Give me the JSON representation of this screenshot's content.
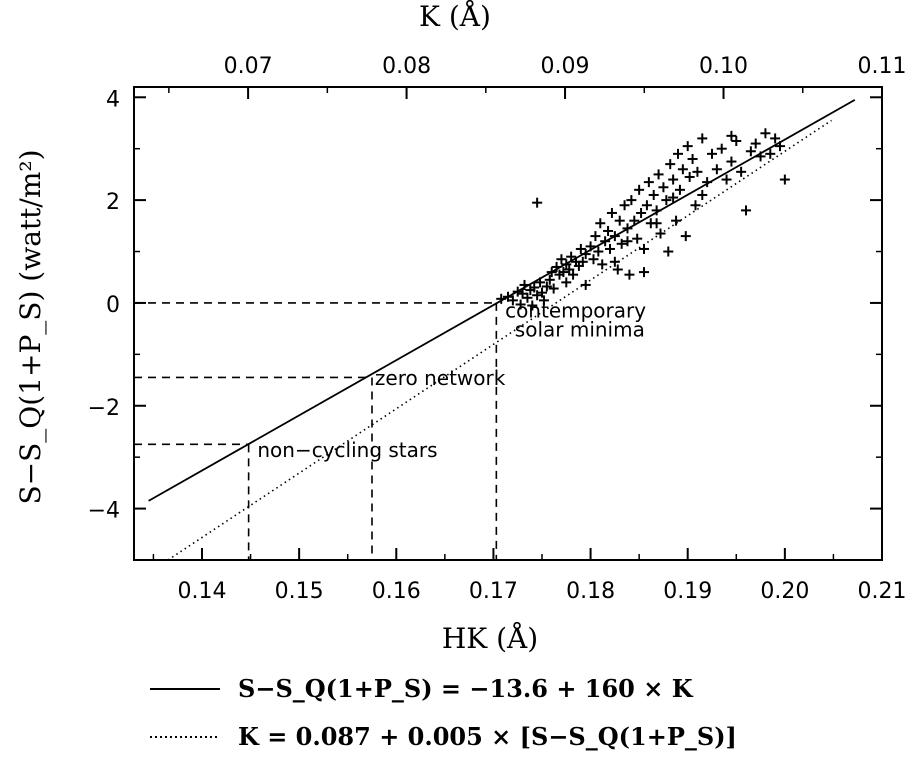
{
  "chart_data": {
    "type": "scatter",
    "title": "",
    "xlabel": "HK (Å)",
    "x2label": "K (Å)",
    "ylabel": "S−S_Q(1+P_S) (watt/m²)",
    "xlim": [
      0.133,
      0.21
    ],
    "x2lim": [
      0.0628,
      0.11
    ],
    "ylim": [
      -5,
      4.2
    ],
    "xticks": [
      "0.14",
      "0.15",
      "0.16",
      "0.17",
      "0.18",
      "0.19",
      "0.20",
      "0.21"
    ],
    "x2ticks": [
      "0.07",
      "0.08",
      "0.09",
      "0.10",
      "0.11"
    ],
    "yticks": [
      "4",
      "2",
      "0",
      "−2",
      "−4"
    ],
    "grid": false,
    "series": [
      {
        "marker": "plus",
        "points": [
          [
            0.1708,
            0.08
          ],
          [
            0.1715,
            0.12
          ],
          [
            0.172,
            0.05
          ],
          [
            0.1725,
            0.22
          ],
          [
            0.1728,
            -0.03
          ],
          [
            0.173,
            0.18
          ],
          [
            0.1732,
            0.35
          ],
          [
            0.1735,
            0.1
          ],
          [
            0.1738,
            0.25
          ],
          [
            0.174,
            -0.05
          ],
          [
            0.1742,
            0.3
          ],
          [
            0.1745,
            0.15
          ],
          [
            0.1748,
            0.4
          ],
          [
            0.175,
            0.2
          ],
          [
            0.1752,
            0.05
          ],
          [
            0.1755,
            0.32
          ],
          [
            0.1758,
            0.45
          ],
          [
            0.176,
            0.6
          ],
          [
            0.1762,
            0.28
          ],
          [
            0.1765,
            0.7
          ],
          [
            0.1768,
            0.55
          ],
          [
            0.177,
            0.85
          ],
          [
            0.1772,
            0.6
          ],
          [
            0.1775,
            0.75
          ],
          [
            0.1778,
            0.65
          ],
          [
            0.178,
            0.9
          ],
          [
            0.1782,
            0.55
          ],
          [
            0.1785,
            0.8
          ],
          [
            0.1788,
            0.72
          ],
          [
            0.179,
            1.05
          ],
          [
            0.1792,
            0.8
          ],
          [
            0.1795,
            0.95
          ],
          [
            0.18,
            1.1
          ],
          [
            0.1803,
            0.85
          ],
          [
            0.1805,
            1.3
          ],
          [
            0.1808,
            1.0
          ],
          [
            0.181,
            1.55
          ],
          [
            0.1812,
            0.75
          ],
          [
            0.1815,
            1.2
          ],
          [
            0.1818,
            1.4
          ],
          [
            0.182,
            1.05
          ],
          [
            0.1822,
            1.75
          ],
          [
            0.1825,
            1.3
          ],
          [
            0.1828,
            0.65
          ],
          [
            0.183,
            1.6
          ],
          [
            0.1832,
            1.15
          ],
          [
            0.1835,
            1.9
          ],
          [
            0.1838,
            1.45
          ],
          [
            0.184,
            0.55
          ],
          [
            0.1842,
            2.0
          ],
          [
            0.1845,
            1.6
          ],
          [
            0.1848,
            1.25
          ],
          [
            0.185,
            2.2
          ],
          [
            0.1852,
            1.75
          ],
          [
            0.1855,
            0.6
          ],
          [
            0.1858,
            1.9
          ],
          [
            0.186,
            2.35
          ],
          [
            0.1862,
            1.55
          ],
          [
            0.1865,
            2.1
          ],
          [
            0.1868,
            1.8
          ],
          [
            0.187,
            2.5
          ],
          [
            0.1872,
            1.35
          ],
          [
            0.1875,
            2.25
          ],
          [
            0.1878,
            2.0
          ],
          [
            0.188,
            1.0
          ],
          [
            0.1882,
            2.7
          ],
          [
            0.1885,
            2.4
          ],
          [
            0.1888,
            1.6
          ],
          [
            0.189,
            2.9
          ],
          [
            0.1892,
            2.2
          ],
          [
            0.1895,
            2.6
          ],
          [
            0.1898,
            1.3
          ],
          [
            0.19,
            3.05
          ],
          [
            0.1902,
            2.45
          ],
          [
            0.1905,
            2.8
          ],
          [
            0.1908,
            1.9
          ],
          [
            0.191,
            2.55
          ],
          [
            0.1915,
            3.2
          ],
          [
            0.192,
            2.35
          ],
          [
            0.1925,
            2.9
          ],
          [
            0.193,
            2.6
          ],
          [
            0.1935,
            3.0
          ],
          [
            0.194,
            2.4
          ],
          [
            0.1945,
            2.75
          ],
          [
            0.195,
            3.15
          ],
          [
            0.1955,
            2.55
          ],
          [
            0.196,
            1.8
          ],
          [
            0.1965,
            2.95
          ],
          [
            0.197,
            3.1
          ],
          [
            0.1975,
            2.85
          ],
          [
            0.198,
            3.3
          ],
          [
            0.1985,
            2.9
          ],
          [
            0.199,
            3.2
          ],
          [
            0.1995,
            3.05
          ],
          [
            0.2,
            2.4
          ],
          [
            0.1745,
            1.95
          ],
          [
            0.1775,
            0.4
          ],
          [
            0.1795,
            0.35
          ],
          [
            0.1825,
            0.8
          ],
          [
            0.1855,
            1.05
          ],
          [
            0.1885,
            2.05
          ],
          [
            0.1915,
            2.1
          ],
          [
            0.1945,
            3.25
          ],
          [
            0.1838,
            1.2
          ],
          [
            0.1868,
            1.55
          ]
        ]
      },
      {
        "name": "S−S_Q(1+P_S) = −13.6 + 160 × K",
        "style": "solid",
        "x": [
          0.1345,
          0.2072
        ],
        "y": [
          -3.85,
          3.95
        ]
      },
      {
        "name": "K = 0.087 + 0.005 × [S−S_Q(1+P_S)]",
        "style": "dotted",
        "x": [
          0.1365,
          0.2048
        ],
        "y": [
          -5.0,
          3.55
        ]
      }
    ],
    "annotations": [
      {
        "text": "contemporary",
        "x": 0.1712,
        "y": -0.28
      },
      {
        "text": "solar minima",
        "x": 0.1722,
        "y": -0.65
      },
      {
        "text": "zero network",
        "x": 0.1578,
        "y": -1.6
      },
      {
        "text": "non−cycling stars",
        "x": 0.1457,
        "y": -3.0
      }
    ],
    "reference_lines": [
      {
        "x": 0.1703,
        "y": 0.0
      },
      {
        "x": 0.1575,
        "y": -1.45
      },
      {
        "x": 0.1448,
        "y": -2.75
      }
    ],
    "legend_position": "bottom"
  }
}
